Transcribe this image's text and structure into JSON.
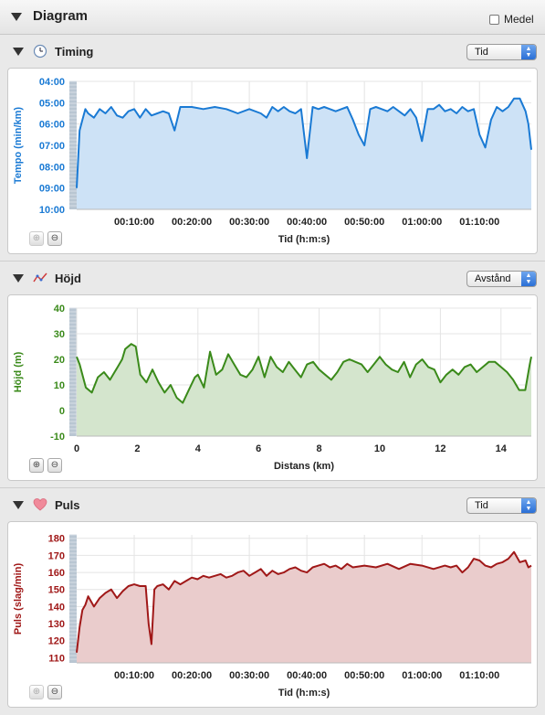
{
  "header": {
    "title": "Diagram",
    "medel_label": "Medel"
  },
  "sections": {
    "timing": {
      "title": "Timing",
      "select_value": "Tid"
    },
    "hojd": {
      "title": "Höjd",
      "select_value": "Avstånd"
    },
    "puls": {
      "title": "Puls",
      "select_value": "Tid"
    }
  },
  "colors": {
    "timing": "#1a7ad4",
    "hojd": "#3a8a1a",
    "puls": "#a01818"
  },
  "icons": {
    "collapse": "disclosure-triangle-icon",
    "timing": "clock-icon",
    "hojd": "elevation-graph-icon",
    "puls": "heart-icon",
    "zoom_in": "zoom-in-icon",
    "zoom_out": "zoom-out-icon"
  },
  "chart_data": [
    {
      "type": "area",
      "ylabel": "Tempo (min/km)",
      "xlabel": "Tid (h:m:s)",
      "y_ticks": [
        "04:00",
        "05:00",
        "06:00",
        "07:00",
        "08:00",
        "09:00",
        "10:00"
      ],
      "x_ticks": [
        "00:10:00",
        "00:20:00",
        "00:30:00",
        "00:40:00",
        "00:50:00",
        "01:00:00",
        "01:10:00"
      ],
      "y_range": [
        4,
        10
      ],
      "y_inverted": true,
      "x_range_min": [
        0,
        79
      ],
      "x_tick_values_min": [
        10,
        20,
        30,
        40,
        50,
        60,
        70
      ],
      "series": [
        {
          "x": [
            0,
            0.5,
            1,
            1.5,
            2,
            3,
            4,
            5,
            6,
            7,
            8,
            9,
            10,
            11,
            12,
            13,
            14,
            15,
            16,
            17,
            18,
            19,
            20,
            22,
            24,
            26,
            28,
            30,
            32,
            33,
            34,
            35,
            36,
            37,
            38,
            39,
            40,
            41,
            42,
            43,
            44,
            45,
            46,
            47,
            48,
            49,
            50,
            51,
            52,
            53,
            54,
            55,
            56,
            57,
            58,
            59,
            60,
            61,
            62,
            63,
            64,
            65,
            66,
            67,
            68,
            69,
            70,
            71,
            72,
            73,
            74,
            75,
            76,
            77,
            78,
            78.5,
            79
          ],
          "values": [
            9.0,
            6.3,
            5.8,
            5.3,
            5.5,
            5.7,
            5.3,
            5.5,
            5.2,
            5.6,
            5.7,
            5.4,
            5.3,
            5.7,
            5.3,
            5.6,
            5.5,
            5.4,
            5.5,
            6.3,
            5.2,
            5.2,
            5.2,
            5.3,
            5.2,
            5.3,
            5.5,
            5.3,
            5.5,
            5.7,
            5.2,
            5.4,
            5.2,
            5.4,
            5.5,
            5.3,
            7.6,
            5.2,
            5.3,
            5.2,
            5.3,
            5.4,
            5.3,
            5.2,
            5.8,
            6.5,
            7.0,
            5.3,
            5.2,
            5.3,
            5.4,
            5.2,
            5.4,
            5.6,
            5.3,
            5.7,
            6.8,
            5.3,
            5.3,
            5.1,
            5.4,
            5.3,
            5.5,
            5.2,
            5.4,
            5.3,
            6.5,
            7.1,
            5.8,
            5.2,
            5.4,
            5.2,
            4.8,
            4.8,
            5.4,
            6.0,
            7.2
          ]
        }
      ]
    },
    {
      "type": "area",
      "ylabel": "Höjd (m)",
      "xlabel": "Distans (km)",
      "y_ticks": [
        "40",
        "30",
        "20",
        "10",
        "0",
        "-10"
      ],
      "x_ticks": [
        "0",
        "2",
        "4",
        "6",
        "8",
        "10",
        "12",
        "14"
      ],
      "y_range": [
        -10,
        40
      ],
      "x_range": [
        0,
        15
      ],
      "series": [
        {
          "x": [
            0,
            0.1,
            0.3,
            0.5,
            0.7,
            0.9,
            1.1,
            1.3,
            1.5,
            1.6,
            1.8,
            1.95,
            2.1,
            2.3,
            2.5,
            2.7,
            2.9,
            3.1,
            3.3,
            3.5,
            3.7,
            3.9,
            4.0,
            4.2,
            4.4,
            4.6,
            4.8,
            5.0,
            5.2,
            5.4,
            5.6,
            5.8,
            6.0,
            6.2,
            6.4,
            6.6,
            6.8,
            7.0,
            7.2,
            7.4,
            7.6,
            7.8,
            8.0,
            8.2,
            8.4,
            8.6,
            8.8,
            9.0,
            9.2,
            9.4,
            9.6,
            9.8,
            10.0,
            10.2,
            10.4,
            10.6,
            10.8,
            11.0,
            11.2,
            11.4,
            11.6,
            11.8,
            12.0,
            12.2,
            12.4,
            12.6,
            12.8,
            13.0,
            13.2,
            13.4,
            13.6,
            13.8,
            14.0,
            14.2,
            14.4,
            14.6,
            14.8,
            14.95,
            15.0
          ],
          "values": [
            21,
            18,
            9,
            7,
            13,
            15,
            12,
            16,
            20,
            24,
            26,
            25,
            14,
            11,
            16,
            11,
            7,
            10,
            5,
            3,
            8,
            13,
            14,
            9,
            23,
            14,
            16,
            22,
            18,
            14,
            13,
            16,
            21,
            13,
            21,
            17,
            15,
            19,
            16,
            13,
            18,
            19,
            16,
            14,
            12,
            15,
            19,
            20,
            19,
            18,
            15,
            18,
            21,
            18,
            16,
            15,
            19,
            13,
            18,
            20,
            17,
            16,
            11,
            14,
            16,
            14,
            17,
            18,
            15,
            17,
            19,
            19,
            17,
            15,
            12,
            8,
            8,
            18,
            21
          ]
        }
      ]
    },
    {
      "type": "area",
      "ylabel": "Puls (slag/min)",
      "xlabel": "Tid (h:m:s)",
      "y_ticks": [
        "180",
        "170",
        "160",
        "150",
        "140",
        "130",
        "120",
        "110"
      ],
      "x_ticks": [
        "00:10:00",
        "00:20:00",
        "00:30:00",
        "00:40:00",
        "00:50:00",
        "01:00:00",
        "01:10:00"
      ],
      "y_range": [
        107,
        182
      ],
      "x_range_min": [
        0,
        79
      ],
      "x_tick_values_min": [
        10,
        20,
        30,
        40,
        50,
        60,
        70
      ],
      "series": [
        {
          "x": [
            0,
            0.5,
            1,
            1.5,
            2,
            3,
            4,
            5,
            6,
            7,
            8,
            9,
            10,
            11,
            12,
            12.5,
            13,
            13.5,
            14,
            15,
            16,
            17,
            18,
            19,
            20,
            21,
            22,
            23,
            24,
            25,
            26,
            27,
            28,
            29,
            30,
            31,
            32,
            33,
            34,
            35,
            36,
            37,
            38,
            39,
            40,
            41,
            42,
            43,
            44,
            45,
            46,
            47,
            48,
            50,
            52,
            54,
            56,
            58,
            60,
            62,
            64,
            65,
            66,
            67,
            68,
            69,
            70,
            71,
            72,
            73,
            74,
            75,
            76,
            77,
            78,
            78.5,
            79
          ],
          "values": [
            113,
            128,
            138,
            141,
            146,
            140,
            145,
            148,
            150,
            145,
            149,
            152,
            153,
            152,
            152,
            130,
            118,
            150,
            152,
            153,
            150,
            155,
            153,
            155,
            157,
            156,
            158,
            157,
            158,
            159,
            157,
            158,
            160,
            161,
            158,
            160,
            162,
            158,
            161,
            159,
            160,
            162,
            163,
            161,
            160,
            163,
            164,
            165,
            163,
            164,
            162,
            165,
            163,
            164,
            163,
            165,
            162,
            165,
            164,
            162,
            164,
            163,
            164,
            160,
            163,
            168,
            167,
            164,
            163,
            165,
            166,
            168,
            172,
            166,
            167,
            163,
            164
          ]
        }
      ]
    }
  ]
}
